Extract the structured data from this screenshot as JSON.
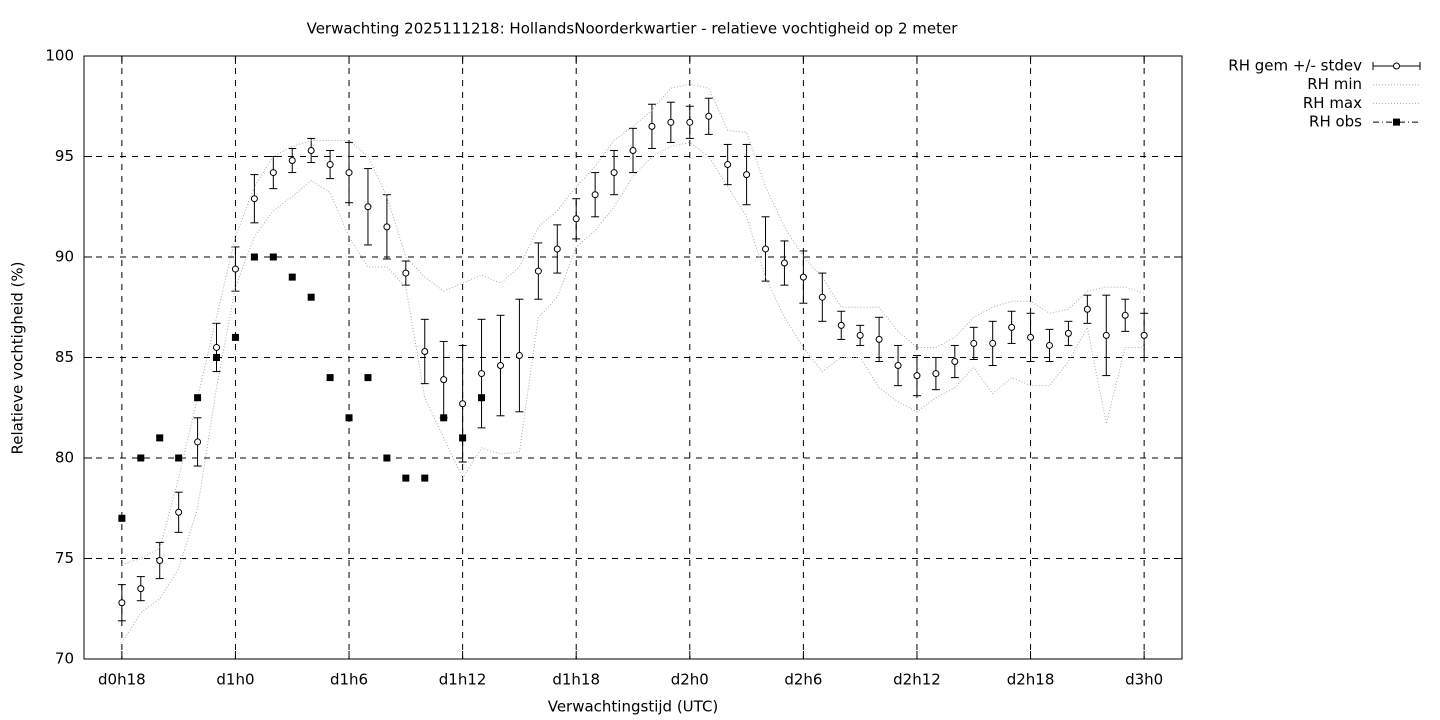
{
  "chart_data": {
    "type": "errorbar",
    "title": "Verwachting 2025111218: HollandsNoorderkwartier - relatieve vochtigheid op 2 meter",
    "x_label": "Verwachtingstijd (UTC)",
    "y_label": "Relatieve vochtigheid (%)",
    "x": [
      18,
      19,
      20,
      21,
      22,
      23,
      24,
      25,
      26,
      27,
      28,
      29,
      30,
      31,
      32,
      33,
      34,
      35,
      36,
      37,
      38,
      39,
      40,
      41,
      42,
      43,
      44,
      45,
      46,
      47,
      48,
      49,
      50,
      51,
      52,
      53,
      54,
      55,
      56,
      57,
      58,
      59,
      60,
      61,
      62,
      63,
      64,
      65,
      66,
      67,
      68,
      69,
      70,
      71,
      72
    ],
    "xlim": [
      16,
      74
    ],
    "xticks": [
      {
        "value": 18,
        "label": "d0h18"
      },
      {
        "value": 24,
        "label": "d1h0"
      },
      {
        "value": 30,
        "label": "d1h6"
      },
      {
        "value": 36,
        "label": "d1h12"
      },
      {
        "value": 42,
        "label": "d1h18"
      },
      {
        "value": 48,
        "label": "d2h0"
      },
      {
        "value": 54,
        "label": "d2h6"
      },
      {
        "value": 60,
        "label": "d2h12"
      },
      {
        "value": 66,
        "label": "d2h18"
      },
      {
        "value": 72,
        "label": "d3h0"
      }
    ],
    "ylim": [
      70,
      100
    ],
    "yticks": [
      70,
      75,
      80,
      85,
      90,
      95,
      100
    ],
    "grid": true,
    "legend": "outside-right",
    "series": [
      {
        "name": "RH gem +/- stdev",
        "style": "errorbar",
        "color": "#000000",
        "values": [
          72.8,
          73.5,
          74.9,
          77.3,
          80.8,
          85.5,
          89.4,
          92.9,
          94.2,
          94.8,
          95.3,
          94.6,
          94.2,
          92.5,
          91.5,
          89.2,
          85.3,
          83.9,
          82.7,
          84.2,
          84.6,
          85.1,
          89.3,
          90.4,
          91.9,
          93.1,
          94.2,
          95.3,
          96.5,
          96.7,
          96.7,
          97.0,
          94.6,
          94.1,
          90.4,
          89.7,
          89.0,
          88.0,
          86.6,
          86.1,
          85.9,
          84.6,
          84.1,
          84.2,
          84.8,
          85.7,
          85.7,
          86.5,
          86.0,
          85.6,
          86.2,
          87.4,
          86.1,
          87.1,
          86.1
        ],
        "errors": [
          0.9,
          0.6,
          0.9,
          1.0,
          1.2,
          1.2,
          1.1,
          1.2,
          0.8,
          0.6,
          0.6,
          0.7,
          1.5,
          1.9,
          1.6,
          0.6,
          1.6,
          1.9,
          2.9,
          2.7,
          2.5,
          2.8,
          1.4,
          1.2,
          1.0,
          1.1,
          1.1,
          1.1,
          1.1,
          1.0,
          0.8,
          0.9,
          1.0,
          1.5,
          1.6,
          1.1,
          1.3,
          1.2,
          0.7,
          0.5,
          1.1,
          1.0,
          1.0,
          0.8,
          0.8,
          0.8,
          1.1,
          0.8,
          1.2,
          0.8,
          0.6,
          0.7,
          2.0,
          0.8,
          1.1
        ]
      },
      {
        "name": "RH min",
        "style": "dotted",
        "color": "#aaaaaa",
        "values": [
          70.8,
          72.3,
          73.0,
          74.5,
          77.5,
          83.5,
          88.5,
          91.0,
          92.3,
          93.0,
          93.8,
          93.2,
          91.0,
          89.5,
          89.5,
          88.5,
          83.0,
          81.0,
          79.0,
          80.5,
          80.2,
          80.3,
          87.0,
          88.0,
          90.5,
          91.3,
          92.5,
          94.0,
          95.0,
          95.5,
          95.7,
          95.0,
          93.5,
          92.0,
          89.0,
          87.0,
          85.5,
          84.3,
          85.0,
          85.0,
          83.5,
          82.8,
          82.3,
          83.0,
          83.5,
          84.5,
          83.2,
          84.0,
          83.6,
          83.6,
          84.8,
          86.5,
          81.7,
          85.5,
          85.5
        ]
      },
      {
        "name": "RH max",
        "style": "dotted",
        "color": "#aaaaaa",
        "values": [
          74.7,
          75.0,
          75.5,
          79.0,
          83.0,
          87.0,
          91.0,
          93.5,
          95.0,
          95.5,
          95.8,
          95.8,
          95.8,
          95.0,
          93.0,
          90.0,
          89.0,
          88.3,
          88.7,
          89.1,
          88.7,
          89.5,
          91.5,
          92.3,
          93.5,
          94.5,
          95.8,
          96.5,
          97.3,
          98.4,
          98.6,
          98.4,
          96.3,
          96.2,
          93.5,
          91.5,
          90.0,
          89.0,
          87.5,
          87.5,
          87.5,
          86.3,
          85.5,
          85.5,
          86.0,
          87.0,
          87.5,
          87.8,
          87.8,
          87.2,
          87.4,
          88.3,
          88.5,
          88.5,
          88.2
        ]
      },
      {
        "name": "RH obs",
        "style": "squares",
        "color": "#000000",
        "values": [
          77,
          80,
          81,
          80,
          83,
          85,
          86,
          90,
          90,
          89,
          88,
          84,
          82,
          84,
          80,
          79,
          79,
          82,
          81,
          83,
          null,
          null,
          null,
          null,
          null,
          null,
          null,
          null,
          null,
          null,
          null,
          null,
          null,
          null,
          null,
          null,
          null,
          null,
          null,
          null,
          null,
          null,
          null,
          null,
          null,
          null,
          null,
          null,
          null,
          null,
          null,
          null,
          null,
          null,
          null
        ]
      }
    ]
  }
}
